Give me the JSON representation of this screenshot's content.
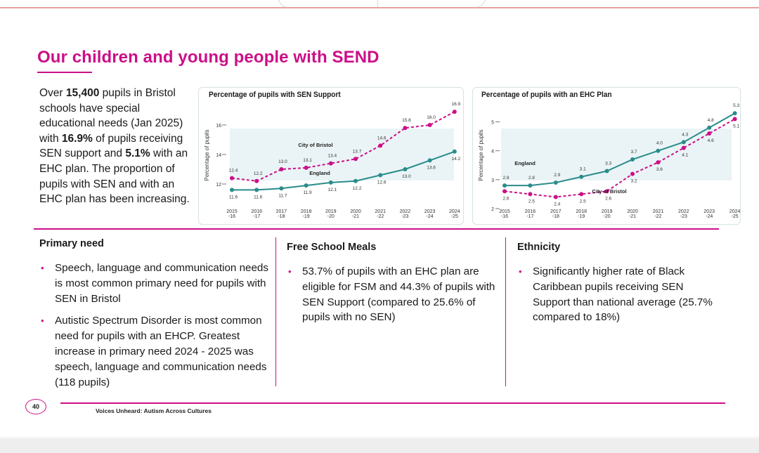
{
  "page": {
    "title": "Our children and young people with SEND",
    "intro": {
      "t1": "Over ",
      "b1": "15,400",
      "t2": " pupils in Bristol schools have special educational needs (Jan 2025) with ",
      "b2": "16.9%",
      "t3": " of pupils receiving SEN support and ",
      "b3": "5.1%",
      "t4": " with an EHC plan. The proportion of pupils with SEN and with an EHC plan has been increasing."
    },
    "page_number": "40",
    "footer": "Voices Unheard: Autism Across Cultures"
  },
  "colors": {
    "magenta": "#cc0f88",
    "teal": "#2a8c8c",
    "panel": "#eaf4f6"
  },
  "sections": {
    "primary_need": {
      "heading": "Primary need",
      "bullets": [
        "Speech, language and communication needs is most common primary need for pupils with SEN in Bristol",
        "Autistic Spectrum Disorder is most common need for pupils with an EHCP. Greatest increase in primary need 2024 - 2025 was speech, language and communication needs (118 pupils)"
      ]
    },
    "fsm": {
      "heading": "Free School Meals",
      "bullets": [
        "53.7% of pupils with an EHC plan are eligible for FSM and 44.3% of pupils with SEN Support (compared to 25.6% of pupils with no SEN)"
      ]
    },
    "ethnicity": {
      "heading": "Ethnicity",
      "bullets": [
        "Significantly higher rate of Black Caribbean pupils receiving SEN Support than national average (25.7% compared to 18%)"
      ]
    }
  },
  "chart_data": [
    {
      "type": "line",
      "title": "Percentage of pupils with SEN Support",
      "ylabel": "Percentage of pupils",
      "xlabel": "",
      "ylim": [
        11,
        17
      ],
      "yticks": [
        12,
        14,
        16
      ],
      "categories": [
        [
          "2015",
          "-16"
        ],
        [
          "2016",
          "-17"
        ],
        [
          "2017",
          "-18"
        ],
        [
          "2018",
          "-19"
        ],
        [
          "2019",
          "-20"
        ],
        [
          "2020",
          "-21"
        ],
        [
          "2021",
          "-22"
        ],
        [
          "2022",
          "-23"
        ],
        [
          "2023",
          "-24"
        ],
        [
          "2024",
          "-25"
        ]
      ],
      "series": [
        {
          "name": "City of Bristol",
          "style": "dashed",
          "color": "#cc0f88",
          "values": [
            12.4,
            12.2,
            13.0,
            13.1,
            13.4,
            13.7,
            14.6,
            15.8,
            16.0,
            16.9
          ],
          "labels": [
            "12.4",
            "12.2",
            "13.0",
            "13.1",
            "13.4",
            "13.7",
            "14.6",
            "15.8",
            "16.0",
            "16.9"
          ]
        },
        {
          "name": "England",
          "style": "solid",
          "color": "#2a8c8c",
          "values": [
            11.6,
            11.6,
            11.7,
            11.9,
            12.1,
            12.2,
            12.6,
            13.0,
            13.6,
            14.2
          ],
          "labels": [
            "11.6",
            "11.6",
            "11.7",
            "11.9",
            "12.1",
            "12.2",
            "12.6",
            "13.0",
            "13.6",
            "14.2"
          ]
        }
      ]
    },
    {
      "type": "line",
      "title": "Percentage of pupils with an EHC Plan",
      "ylabel": "Percentage of pupils",
      "xlabel": "",
      "ylim": [
        2,
        5.5
      ],
      "yticks": [
        2,
        3,
        4,
        5
      ],
      "categories": [
        [
          "2015",
          "-16"
        ],
        [
          "2016",
          "-17"
        ],
        [
          "2017",
          "-18"
        ],
        [
          "2018",
          "-19"
        ],
        [
          "2019",
          "-20"
        ],
        [
          "2020",
          "-21"
        ],
        [
          "2021",
          "-22"
        ],
        [
          "2022",
          "-23"
        ],
        [
          "2023",
          "-24"
        ],
        [
          "2024",
          "-25"
        ]
      ],
      "series": [
        {
          "name": "England",
          "style": "solid",
          "color": "#2a8c8c",
          "values": [
            2.8,
            2.8,
            2.9,
            3.1,
            3.3,
            3.7,
            4.0,
            4.3,
            4.8,
            5.3
          ],
          "labels": [
            "2.8",
            "2.8",
            "2.9",
            "3.1",
            "3.3",
            "3.7",
            "4.0",
            "4.3",
            "4.8",
            "5.3"
          ]
        },
        {
          "name": "City of Bristol",
          "style": "dashed",
          "color": "#cc0f88",
          "values": [
            2.6,
            2.5,
            2.4,
            2.5,
            2.6,
            3.2,
            3.6,
            4.1,
            4.6,
            5.1
          ],
          "labels": [
            "2.6",
            "2.5",
            "2.4",
            "2.5",
            "2.6",
            "3.2",
            "3.6",
            "4.1",
            "4.6",
            "5.1"
          ]
        }
      ]
    }
  ]
}
